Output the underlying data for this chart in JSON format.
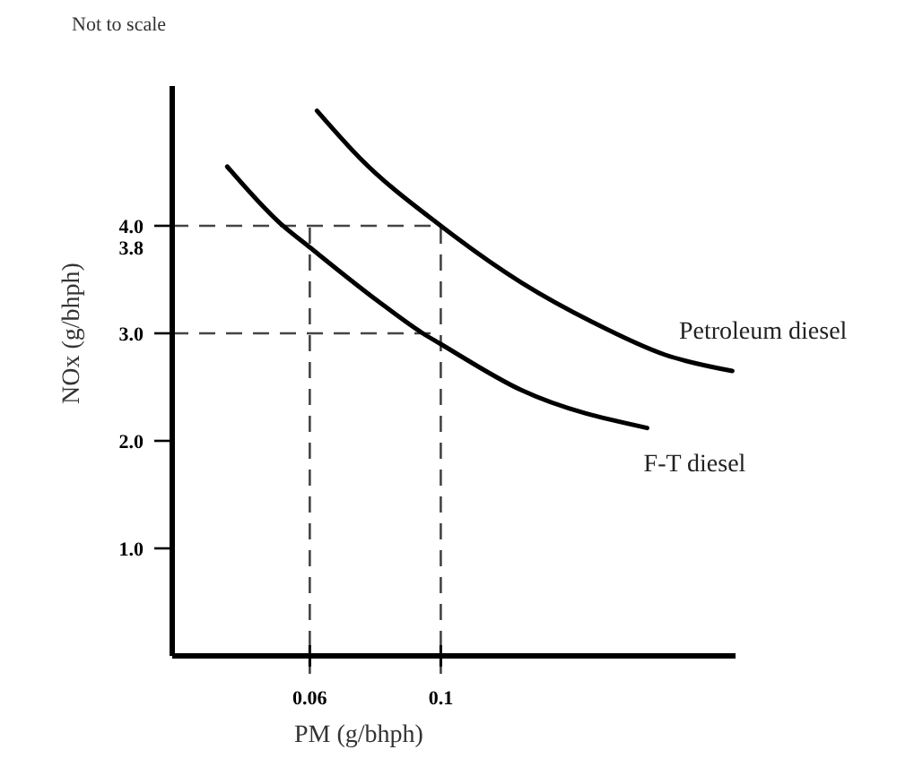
{
  "chart_data": {
    "type": "line",
    "xlabel": "PM (g/bhph)",
    "ylabel": "NOx (g/bhph)",
    "annotations": [
      "Not to scale"
    ],
    "xlim": [
      0.018,
      0.19
    ],
    "ylim": [
      0,
      5.3
    ],
    "xticks": [
      {
        "value": 0.06,
        "label": "0.06"
      },
      0.1
    ],
    "yticks": [
      {
        "value": 1,
        "label": "1.0"
      },
      {
        "value": 2,
        "label": "2.0"
      },
      {
        "value": 3,
        "label": "3.0"
      },
      {
        "value": 3.8,
        "label": "3.8"
      },
      {
        "value": 4,
        "label": "4.0"
      }
    ],
    "series": [
      {
        "name": "Petroleum diesel",
        "color": "#000000",
        "x": [
          0.0622,
          0.0753,
          0.1,
          0.1247,
          0.1466,
          0.1685,
          0.189
        ],
        "values": [
          5.07,
          4.63,
          4.0,
          3.47,
          3.1,
          2.8,
          2.65
        ]
      },
      {
        "name": "F-T diesel",
        "color": "#000000",
        "x": [
          0.0348,
          0.0507,
          0.06,
          0.0808,
          0.0945,
          0.1,
          0.1247,
          0.163
        ],
        "values": [
          4.55,
          4.03,
          3.8,
          3.3,
          3.0,
          2.9,
          2.47,
          2.12
        ]
      }
    ],
    "ref_lines": [
      {
        "axis": "y",
        "value": 4.0,
        "line_style": "dashed"
      },
      {
        "axis": "y",
        "value": 3.0,
        "line_style": "dashed"
      },
      {
        "axis": "x",
        "value": 0.06,
        "line_style": "dashed"
      },
      {
        "axis": "x",
        "value": 0.1,
        "line_style": "dashed"
      }
    ],
    "grid": false,
    "legend": false,
    "marker": "none",
    "line_style": "solid"
  }
}
